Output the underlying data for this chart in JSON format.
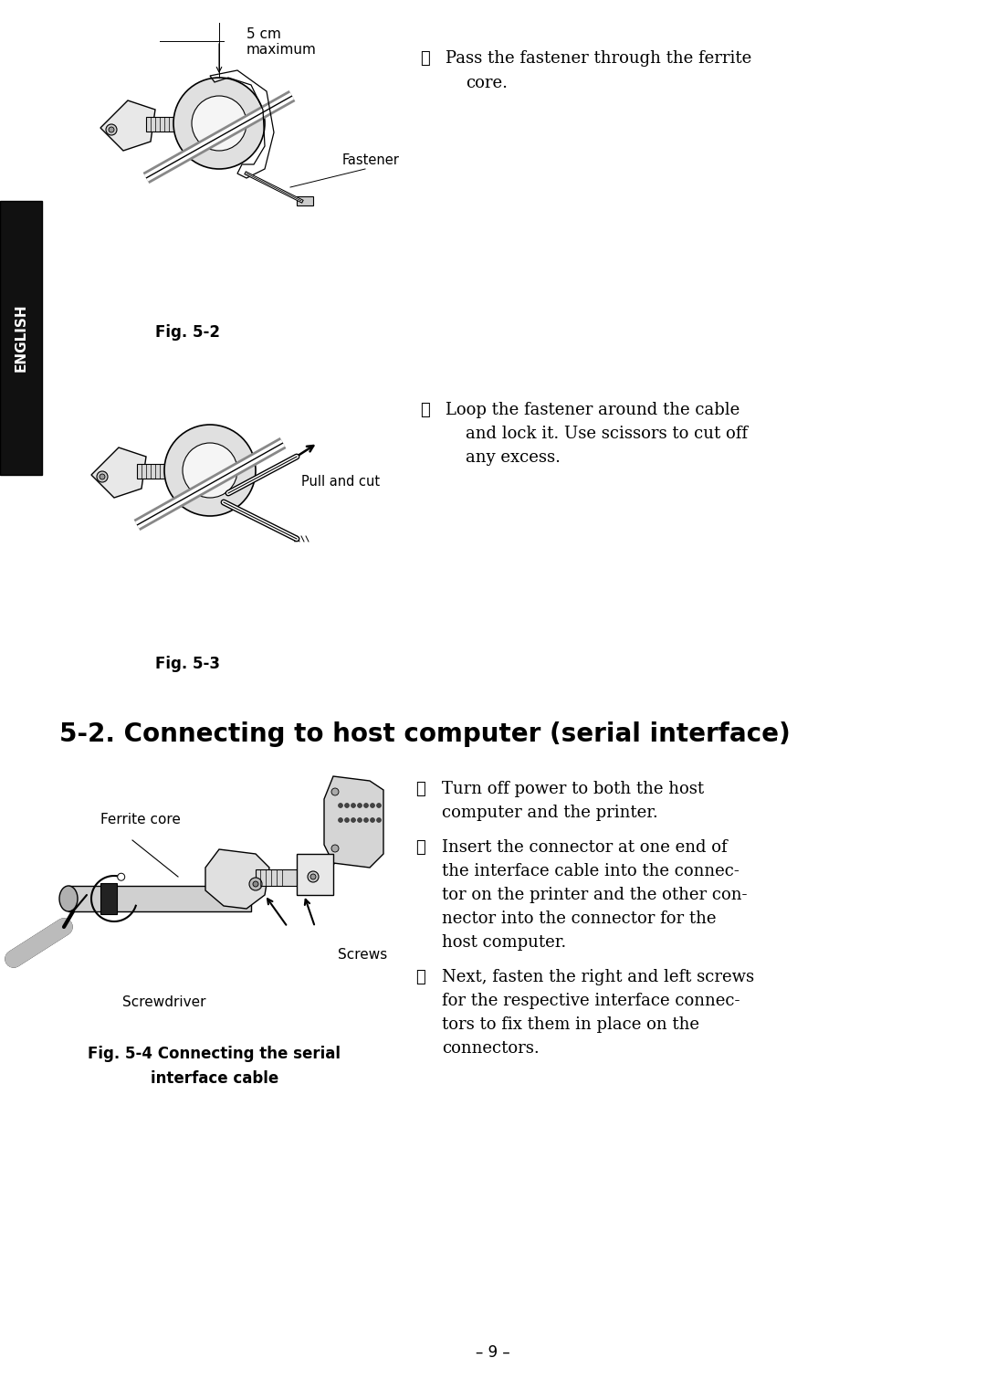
{
  "bg_color": "#ffffff",
  "sidebar_color": "#111111",
  "sidebar_text": "ENGLISH",
  "fig1_5cm_label": "5 cm\nmaximum",
  "fig1_fastener_label": "Fastener",
  "fig1_caption": "Fig. 5-2",
  "fig1_step_num": "②",
  "fig1_step_text": "Pass the fastener through the ferrite\n      core.",
  "fig2_pull_label": "Pull and cut",
  "fig2_caption": "Fig. 5-3",
  "fig2_step_num": "③",
  "fig2_step_line1": "Loop the fastener around the cable",
  "fig2_step_line2": "and lock it. Use scissors to cut off",
  "fig2_step_line3": "any excess.",
  "section_title": "5-2. Connecting to host computer (serial interface)",
  "fig3_ferrite_label": "Ferrite core",
  "fig3_screws_label": "Screws",
  "fig3_driver_label": "Screwdriver",
  "fig3_caption_line1": "Fig. 5-4 Connecting the serial",
  "fig3_caption_line2": "interface cable",
  "step1_num": "①",
  "step1_text": "Turn off power to both the host\ncomputer and the printer.",
  "step2_num": "②",
  "step2_text": "Insert the connector at one end of\nthe interface cable into the connec-\ntor on the printer and the other con-\nnector into the connector for the\nhost computer.",
  "step3_num": "③",
  "step3_text": "Next, fasten the right and left screws\nfor the respective interface connec-\ntors to fix them in place on the\nconnectors.",
  "page_number": "– 9 –"
}
